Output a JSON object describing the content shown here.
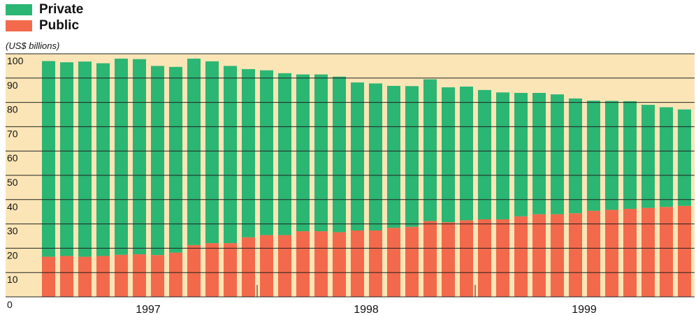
{
  "colors": {
    "private": "#2bb673",
    "public": "#f26a4b",
    "plot_bg": "#fbe5b6",
    "grid": "#222222"
  },
  "chart_data": {
    "type": "bar",
    "stacked": true,
    "title": "",
    "xlabel": "",
    "ylabel": "(US$ billions)",
    "ylim": [
      0,
      100
    ],
    "y_ticks": [
      0,
      10,
      20,
      30,
      40,
      50,
      60,
      70,
      80,
      90,
      100
    ],
    "x_tick_labels": [
      "1997",
      "1998",
      "1999"
    ],
    "legend": {
      "position": "top-left"
    },
    "grid": true,
    "series": [
      {
        "name": "Public",
        "values": [
          16.5,
          16.8,
          16.5,
          16.8,
          17.3,
          17.5,
          17.2,
          18.2,
          21.3,
          22.1,
          22.1,
          24.5,
          25.4,
          25.4,
          27.0,
          27.0,
          26.6,
          27.3,
          27.3,
          28.4,
          28.8,
          31.2,
          30.7,
          31.5,
          31.9,
          31.9,
          33.1,
          34.0,
          34.0,
          34.4,
          35.4,
          35.8,
          36.2,
          36.6,
          37.0,
          37.4
        ]
      },
      {
        "name": "Private",
        "values": [
          80.5,
          79.7,
          80.3,
          79.3,
          80.7,
          80.3,
          77.8,
          76.4,
          76.7,
          74.8,
          72.9,
          69.2,
          67.8,
          66.6,
          64.5,
          64.5,
          64.0,
          60.9,
          60.5,
          58.4,
          57.9,
          58.3,
          55.5,
          55.0,
          53.2,
          52.2,
          50.8,
          49.9,
          49.3,
          47.2,
          45.3,
          44.8,
          44.3,
          42.4,
          41.0,
          39.7
        ]
      }
    ]
  }
}
